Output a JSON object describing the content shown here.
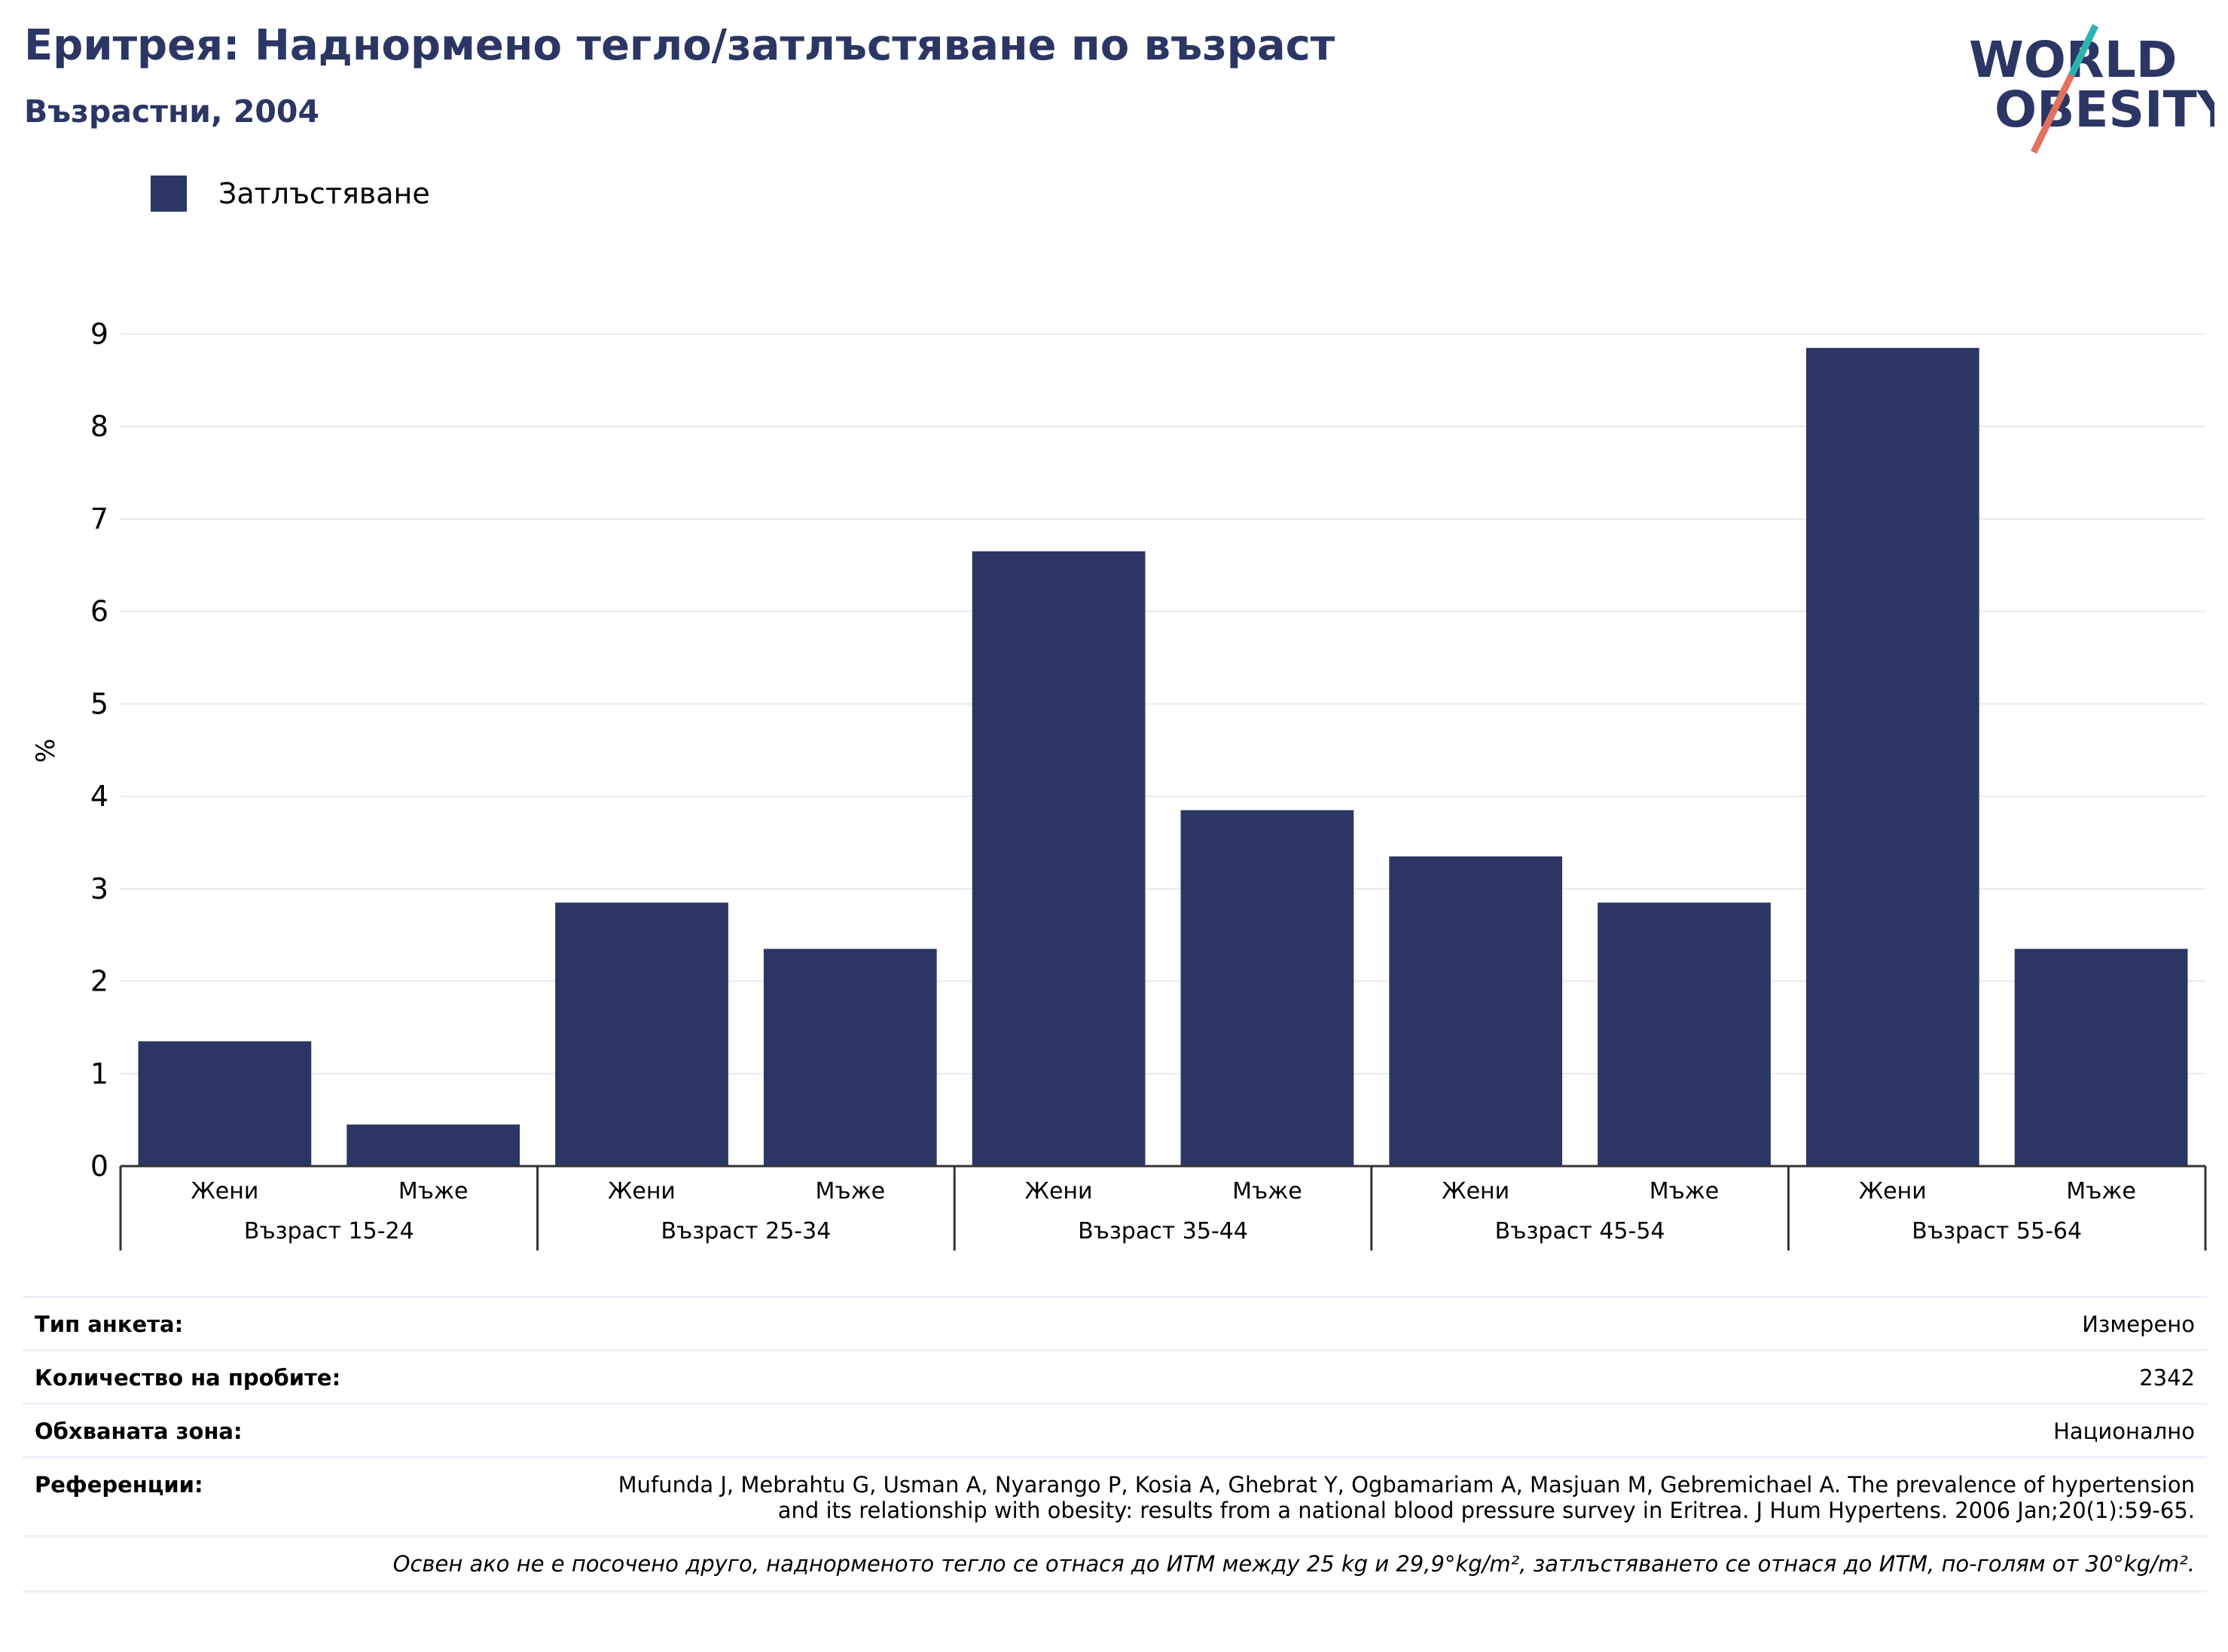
{
  "title": "Еритрея: Наднормено тегло/затлъстяване по възраст",
  "subtitle": "Възрастни, 2004",
  "logo": {
    "line1": "WORLD",
    "line2": "OBESITY",
    "colors": {
      "text": "#2b3664",
      "teal": "#2bb3b1",
      "coral": "#e2725b"
    }
  },
  "colors": {
    "bar": "#2b3664",
    "grid": "#e8e9ef",
    "axis": "#333333"
  },
  "chart_data": {
    "type": "bar",
    "ylabel": "%",
    "ylim": [
      0,
      9
    ],
    "yticks": [
      0,
      1,
      2,
      3,
      4,
      5,
      6,
      7,
      8,
      9
    ],
    "grid": true,
    "legend_position": "top-left",
    "groups": [
      "Възраст 15-24",
      "Възраст 25-34",
      "Възраст 35-44",
      "Възраст 45-54",
      "Възраст 55-64"
    ],
    "subcategories": [
      "Жени",
      "Мъже"
    ],
    "series": [
      {
        "name": "Затлъстяване",
        "color": "#2b3664",
        "values": [
          1.35,
          0.45,
          2.85,
          2.35,
          6.65,
          3.85,
          3.35,
          2.85,
          8.85,
          2.35
        ]
      }
    ]
  },
  "info": {
    "rows": [
      {
        "label": "Тип анкета:",
        "value": "Измерено"
      },
      {
        "label": "Количество на пробите:",
        "value": "2342"
      },
      {
        "label": "Обхваната зона:",
        "value": "Национално"
      },
      {
        "label": "Референции:",
        "value": "Mufunda J, Mebrahtu G, Usman A, Nyarango P, Kosia A, Ghebrat Y, Ogbamariam A, Masjuan M, Gebremichael A. The prevalence of hypertension and its relationship with obesity: results from a national blood pressure survey in Eritrea. J Hum Hypertens. 2006 Jan;20(1):59-65."
      }
    ],
    "note": "Освен ако не е посочено друго, наднорменото тегло се отнася до ИТМ между 25 kg и 29,9°kg/m², затлъстяването се отнася до ИТМ, по-голям от 30°kg/m²."
  }
}
